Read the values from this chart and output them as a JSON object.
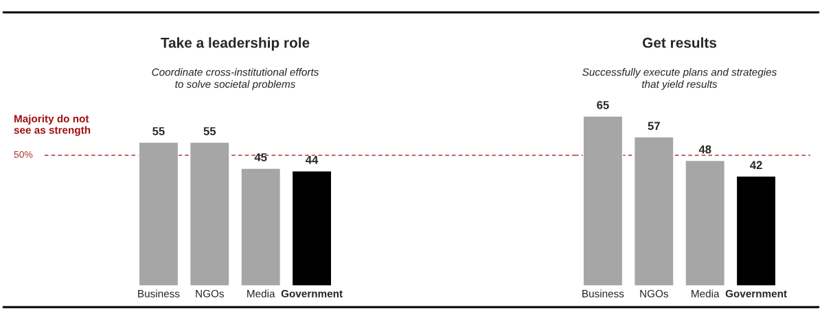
{
  "chart_data": [
    {
      "type": "bar",
      "title": "Take a leadership role",
      "subtitle": "Coordinate cross-institutional efforts\nto solve societal problems",
      "categories": [
        "Business",
        "NGOs",
        "Media",
        "Government"
      ],
      "values": [
        55,
        55,
        45,
        44
      ],
      "colors": [
        "#a6a6a6",
        "#a6a6a6",
        "#a6a6a6",
        "#000000"
      ],
      "data_labels": true,
      "grid": false,
      "legend": false,
      "tick_labels": "x",
      "ref_lines": [
        {
          "axis": "y",
          "value": 50,
          "label": "50%",
          "color": "#b03030",
          "line_style": "dashed"
        }
      ],
      "annotations": [
        "Majority do not\nsee as strength"
      ]
    },
    {
      "type": "bar",
      "title": "Get results",
      "subtitle": "Successfully execute plans and strategies\nthat yield results",
      "categories": [
        "Business",
        "NGOs",
        "Media",
        "Government"
      ],
      "values": [
        65,
        57,
        48,
        42
      ],
      "colors": [
        "#a6a6a6",
        "#a6a6a6",
        "#a6a6a6",
        "#000000"
      ],
      "data_labels": true,
      "grid": false,
      "legend": false,
      "tick_labels": "x",
      "ref_lines": [
        {
          "axis": "y",
          "value": 50,
          "label": null,
          "color": "#b03030",
          "line_style": "dashed"
        }
      ]
    }
  ]
}
